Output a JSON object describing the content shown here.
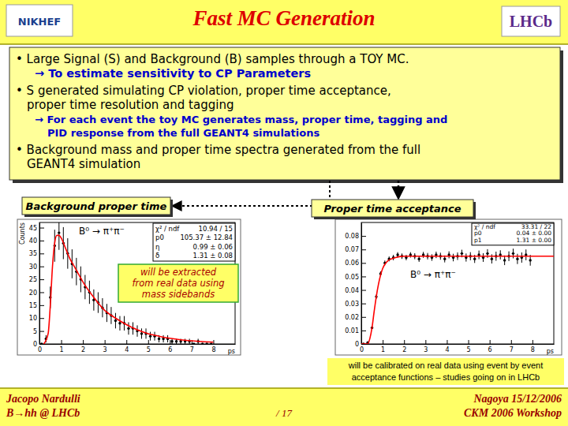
{
  "slide": {
    "title": "Fast MC Generation",
    "logos": [
      "NIKHEF",
      "LHCb"
    ],
    "bullets": [
      {
        "lines": [
          "• Large Signal (S) and Background (B) samples through a TOY MC."
        ],
        "sub": [
          "→ To estimate sensitivity to CP Parameters"
        ]
      },
      {
        "lines": [
          "• S generated simulating CP violation, proper time acceptance,",
          "proper time resolution and tagging"
        ],
        "sub": [
          "→ For each event the toy MC generates mass, proper time, tagging and",
          "PID response from the full GEANT4 simulations"
        ]
      },
      {
        "lines": [
          "• Background mass and proper time spectra generated from the full",
          "GEANT4 simulation"
        ]
      }
    ],
    "footer": {
      "author": "Jacopo Nardulli",
      "talk": "B→hh @ LHCb",
      "page": "/ 17",
      "place": "Nagoya 15/12/2006",
      "event": "CKM 2006 Workshop"
    }
  },
  "chart_data": [
    {
      "type": "scatter",
      "title": "Background proper time",
      "x_label": "ps",
      "y_label": "Counts",
      "xlim": [
        0,
        9
      ],
      "xticks": [
        0,
        1,
        2,
        3,
        4,
        5,
        6,
        7,
        8
      ],
      "ylim": [
        0,
        47
      ],
      "yticks": [
        0,
        5,
        10,
        15,
        20,
        25,
        30,
        35,
        40,
        45
      ],
      "annotations": [
        "B⁰ → π⁺π⁻"
      ],
      "note": [
        "will be extracted",
        "from real data using",
        "mass sidebands"
      ],
      "stats": [
        {
          "label": "χ² / ndf",
          "value": "10.94 / 15"
        },
        {
          "label": "p0",
          "value": "105.37 ± 12.84"
        },
        {
          "label": "η",
          "value": "0.99 ± 0.06"
        },
        {
          "label": "δ",
          "value": "1.31 ± 0.08"
        }
      ],
      "series": [
        {
          "type": "scatter",
          "marker": "circle",
          "color": "#000000",
          "x": [
            0.1,
            0.3,
            0.5,
            0.7,
            0.9,
            1.1,
            1.3,
            1.5,
            1.7,
            1.9,
            2.1,
            2.3,
            2.5,
            2.7,
            2.9,
            3.1,
            3.3,
            3.5,
            3.7,
            3.9,
            4.1,
            4.3,
            4.5,
            4.7,
            4.9,
            5.1,
            5.3,
            5.5,
            5.7,
            5.9,
            6.1,
            6.3,
            6.5,
            6.7,
            6.9,
            7.1,
            7.3,
            7.5,
            7.7,
            7.9
          ],
          "values": [
            0,
            2,
            18,
            38,
            43,
            39,
            35,
            31,
            28,
            25,
            22,
            20,
            17,
            16,
            14,
            12,
            11,
            9,
            8,
            8,
            6,
            6,
            5,
            4,
            4,
            3,
            3,
            2,
            2,
            2,
            1,
            1,
            1,
            1,
            1,
            0,
            1,
            0,
            0,
            0
          ],
          "errors": [
            0,
            1.4,
            4.2,
            6.2,
            6.6,
            6.2,
            5.9,
            5.6,
            5.3,
            5,
            4.7,
            4.5,
            4.1,
            4,
            3.7,
            3.5,
            3.3,
            3,
            2.8,
            2.8,
            2.4,
            2.4,
            2.2,
            2,
            2,
            1.7,
            1.7,
            1.4,
            1.4,
            1.4,
            1,
            1,
            1,
            1,
            1,
            0,
            1,
            0,
            0,
            0
          ]
        },
        {
          "type": "line",
          "line_style": "solid",
          "color": "#ff0000",
          "x": [
            0.2,
            0.4,
            0.5,
            0.6,
            0.7,
            0.8,
            0.9,
            1.0,
            1.2,
            1.4,
            1.6,
            1.8,
            2,
            2.5,
            3,
            3.5,
            4,
            4.5,
            5,
            5.5,
            6,
            6.5,
            7,
            7.5,
            8
          ],
          "values": [
            0,
            4,
            15,
            30,
            39,
            42,
            42,
            41,
            37,
            33,
            30,
            27,
            24,
            18,
            13,
            10,
            7.5,
            5.5,
            4,
            3,
            2.2,
            1.6,
            1.2,
            0.9,
            0.7
          ]
        }
      ]
    },
    {
      "type": "scatter",
      "title": "Proper time acceptance",
      "x_label": "ps",
      "xlim": [
        0,
        9
      ],
      "xticks": [
        0,
        1,
        2,
        3,
        4,
        5,
        6,
        7,
        8
      ],
      "ylim": [
        0,
        0.09
      ],
      "yticks": [
        0,
        0.01,
        0.02,
        0.03,
        0.04,
        0.05,
        0.06,
        0.07,
        0.08
      ],
      "annotations": [
        "B⁰ → π⁺π⁻"
      ],
      "note": [
        "will be calibrated on real data using event by event",
        "acceptance functions – studies going on in LHCb"
      ],
      "stats": [
        {
          "label": "χ² / ndf",
          "value": "33.31 / 22"
        },
        {
          "label": "p0",
          "value": "0.04 ± 0.00"
        },
        {
          "label": "p1",
          "value": "1.31 ± 0.00"
        }
      ],
      "series": [
        {
          "type": "scatter",
          "marker": "circle",
          "color": "#000000",
          "x": [
            0.1,
            0.3,
            0.5,
            0.7,
            0.9,
            1.1,
            1.3,
            1.5,
            1.7,
            1.9,
            2.1,
            2.3,
            2.5,
            2.7,
            2.9,
            3.1,
            3.3,
            3.5,
            3.7,
            3.9,
            4.1,
            4.3,
            4.5,
            4.7,
            4.9,
            5.1,
            5.3,
            5.5,
            5.7,
            5.9,
            6.1,
            6.3,
            6.5,
            6.7,
            6.9,
            7.1,
            7.3,
            7.5,
            7.7,
            7.9
          ],
          "values": [
            0,
            0.001,
            0.012,
            0.035,
            0.052,
            0.06,
            0.063,
            0.064,
            0.066,
            0.065,
            0.064,
            0.066,
            0.065,
            0.063,
            0.066,
            0.065,
            0.064,
            0.066,
            0.065,
            0.063,
            0.066,
            0.064,
            0.065,
            0.067,
            0.064,
            0.065,
            0.063,
            0.066,
            0.064,
            0.067,
            0.063,
            0.065,
            0.066,
            0.062,
            0.065,
            0.067,
            0.063,
            0.064,
            0.066,
            0.062
          ],
          "errors": [
            0,
            0.0005,
            0.001,
            0.0015,
            0.0018,
            0.0018,
            0.0018,
            0.002,
            0.002,
            0.002,
            0.002,
            0.002,
            0.0022,
            0.0022,
            0.0022,
            0.0024,
            0.0024,
            0.0024,
            0.0026,
            0.0026,
            0.0026,
            0.0028,
            0.0028,
            0.0028,
            0.003,
            0.003,
            0.003,
            0.0032,
            0.0032,
            0.0032,
            0.0034,
            0.0034,
            0.0034,
            0.0036,
            0.0036,
            0.0036,
            0.0038,
            0.0038,
            0.004,
            0.004
          ]
        },
        {
          "type": "line",
          "line_style": "solid",
          "color": "#ff0000",
          "x": [
            0,
            0.3,
            0.4,
            0.5,
            0.6,
            0.7,
            0.8,
            0.9,
            1.0,
            1.2,
            1.4,
            1.6,
            2,
            3,
            4,
            5,
            6,
            7,
            8,
            9
          ],
          "values": [
            0,
            0,
            0.004,
            0.012,
            0.024,
            0.035,
            0.044,
            0.051,
            0.056,
            0.061,
            0.063,
            0.064,
            0.065,
            0.065,
            0.065,
            0.065,
            0.065,
            0.065,
            0.065,
            0.065
          ]
        }
      ]
    }
  ]
}
